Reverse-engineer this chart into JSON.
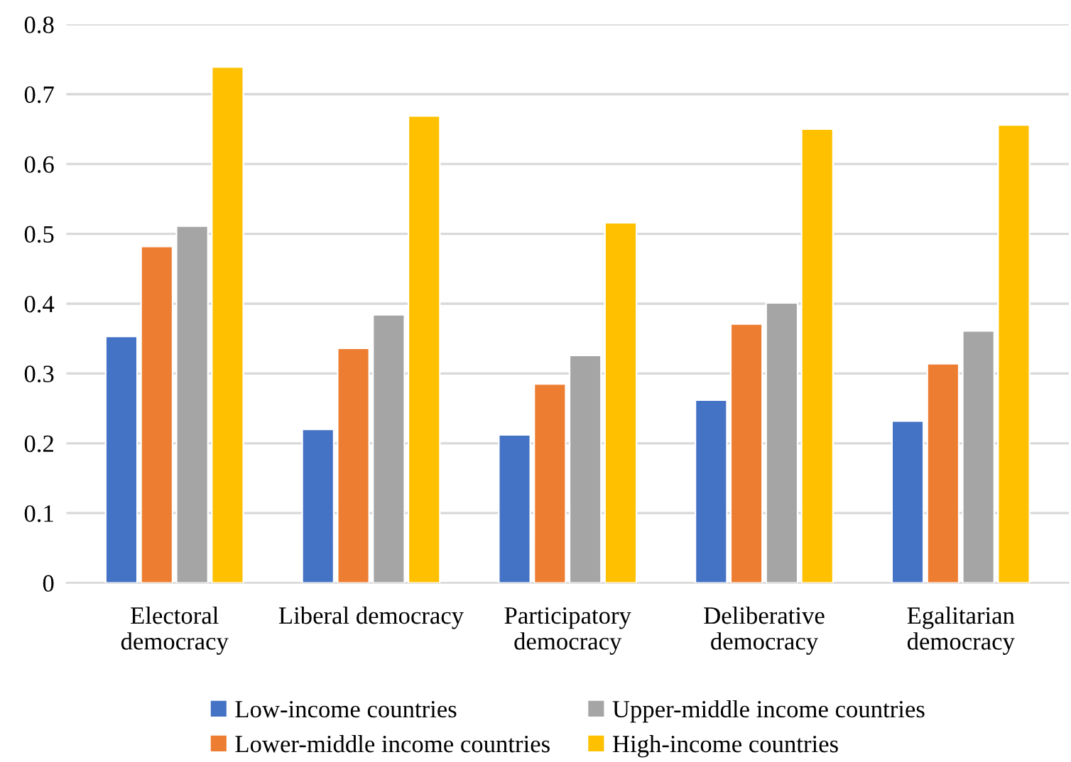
{
  "chart_data": {
    "type": "bar",
    "categories": [
      "Electoral\ndemocracy",
      "Liberal democracy",
      "Participatory\ndemocracy",
      "Deliberative\ndemocracy",
      "Egalitarian\ndemocracy"
    ],
    "series": [
      {
        "name": "Low-income countries",
        "color": "#4472c4",
        "values": [
          0.353,
          0.22,
          0.212,
          0.262,
          0.232
        ]
      },
      {
        "name": "Lower-middle income countries",
        "color": "#ed7d31",
        "values": [
          0.482,
          0.336,
          0.285,
          0.371,
          0.314
        ]
      },
      {
        "name": "Upper-middle income countries",
        "color": "#a5a5a5",
        "values": [
          0.511,
          0.384,
          0.326,
          0.401,
          0.361
        ]
      },
      {
        "name": "High-income countries",
        "color": "#ffc000",
        "values": [
          0.739,
          0.669,
          0.516,
          0.65,
          0.656
        ]
      }
    ],
    "ylim": [
      0,
      0.8
    ],
    "yticks": [
      0,
      0.1,
      0.2,
      0.3,
      0.4,
      0.5,
      0.6,
      0.7,
      0.8
    ],
    "grid": "y",
    "legend": "bottom"
  }
}
